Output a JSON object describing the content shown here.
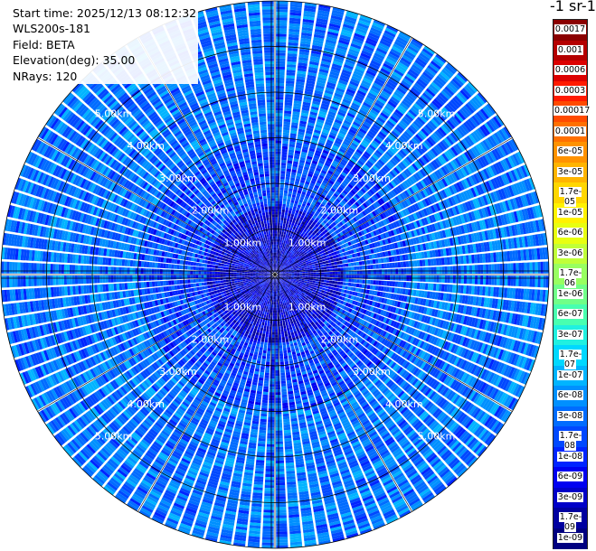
{
  "info": {
    "start_time": "Start time: 2025/12/13 08:12:32",
    "instrument": "WLS200s-181",
    "field": "Field: BETA",
    "elevation": "Elevation(deg): 35.00",
    "nrays": "NRays: 120"
  },
  "colorbar": {
    "unit_title": "-1 sr-1",
    "labels": [
      "0.0017",
      "0.001",
      "0.0006",
      "0.0003",
      "0.00017",
      "0.0001",
      "6e-05",
      "3e-05",
      "1.7e-05",
      "1e-05",
      "6e-06",
      "3e-06",
      "1.7e-06",
      "1e-06",
      "6e-07",
      "3e-07",
      "1.7e-07",
      "1e-07",
      "6e-08",
      "3e-08",
      "1.7e-08",
      "1e-08",
      "6e-09",
      "3e-09",
      "1.7e-09",
      "1e-09"
    ],
    "colors": [
      "#8b0000",
      "#b40000",
      "#dc0000",
      "#ff1a00",
      "#ff4a00",
      "#ff7000",
      "#ff9200",
      "#ffb400",
      "#ffd600",
      "#fff200",
      "#e8ff10",
      "#c0ff38",
      "#98ff60",
      "#70ff88",
      "#48ffb0",
      "#20f0e0",
      "#00d8ff",
      "#00b4ff",
      "#0090ff",
      "#006cff",
      "#0048ff",
      "#0024ff",
      "#0000f0",
      "#0000c8",
      "#0000a0",
      "#000080"
    ]
  },
  "chart_data": {
    "type": "heatmap",
    "projection": "polar",
    "field": "BETA",
    "elevation_deg": 35.0,
    "nrays": 120,
    "range_rings_km": [
      1.0,
      2.0,
      3.0,
      4.0,
      5.0
    ],
    "ring_labels": [
      "1.00km",
      "2.00km",
      "3.00km",
      "4.00km",
      "5.00km"
    ],
    "max_range_km": 6.0,
    "color_scale": "log",
    "vmin": 1e-09,
    "vmax": 0.0017,
    "typical_values": [
      {
        "range_km": [
          0,
          1.5
        ],
        "beta": 5e-09
      },
      {
        "range_km": [
          1.5,
          3
        ],
        "beta": 2e-08
      },
      {
        "range_km": [
          3,
          6
        ],
        "beta": 4e-08
      }
    ]
  }
}
